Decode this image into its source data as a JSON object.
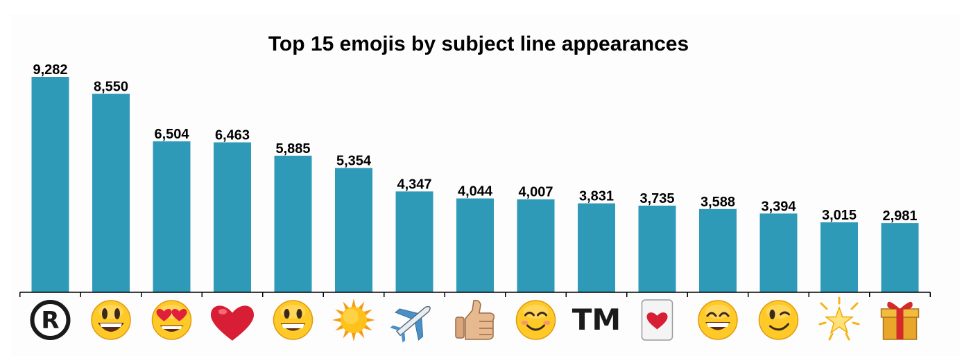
{
  "chart_data": {
    "type": "bar",
    "title": "Top 15 emojis by subject line appearances",
    "xlabel": "",
    "ylabel": "",
    "categories": [
      "registered-icon",
      "smiley-open-mouth-icon",
      "heart-eyes-icon",
      "red-heart-icon",
      "grinning-face-icon",
      "sun-icon",
      "airplane-icon",
      "thumbs-up-icon",
      "smiling-face-icon",
      "trademark-icon",
      "heart-card-icon",
      "grin-smiling-eyes-icon",
      "winking-face-icon",
      "glowing-star-icon",
      "gift-icon"
    ],
    "values": [
      9282,
      8550,
      6504,
      6463,
      5885,
      5354,
      4347,
      4044,
      4007,
      3831,
      3735,
      3588,
      3394,
      3015,
      2981
    ],
    "value_labels": [
      "9,282",
      "8,550",
      "6,504",
      "6,463",
      "5,885",
      "5,354",
      "4,347",
      "4,044",
      "4,007",
      "3,831",
      "3,735",
      "3,588",
      "3,394",
      "3,015",
      "2,981"
    ],
    "tm_label": "TM",
    "ylim": [
      0,
      9282
    ],
    "grid": false,
    "legend": "none",
    "colors": {
      "bar": "#2e9ab8",
      "axis": "#000000",
      "background": "#fdfdfd"
    }
  }
}
